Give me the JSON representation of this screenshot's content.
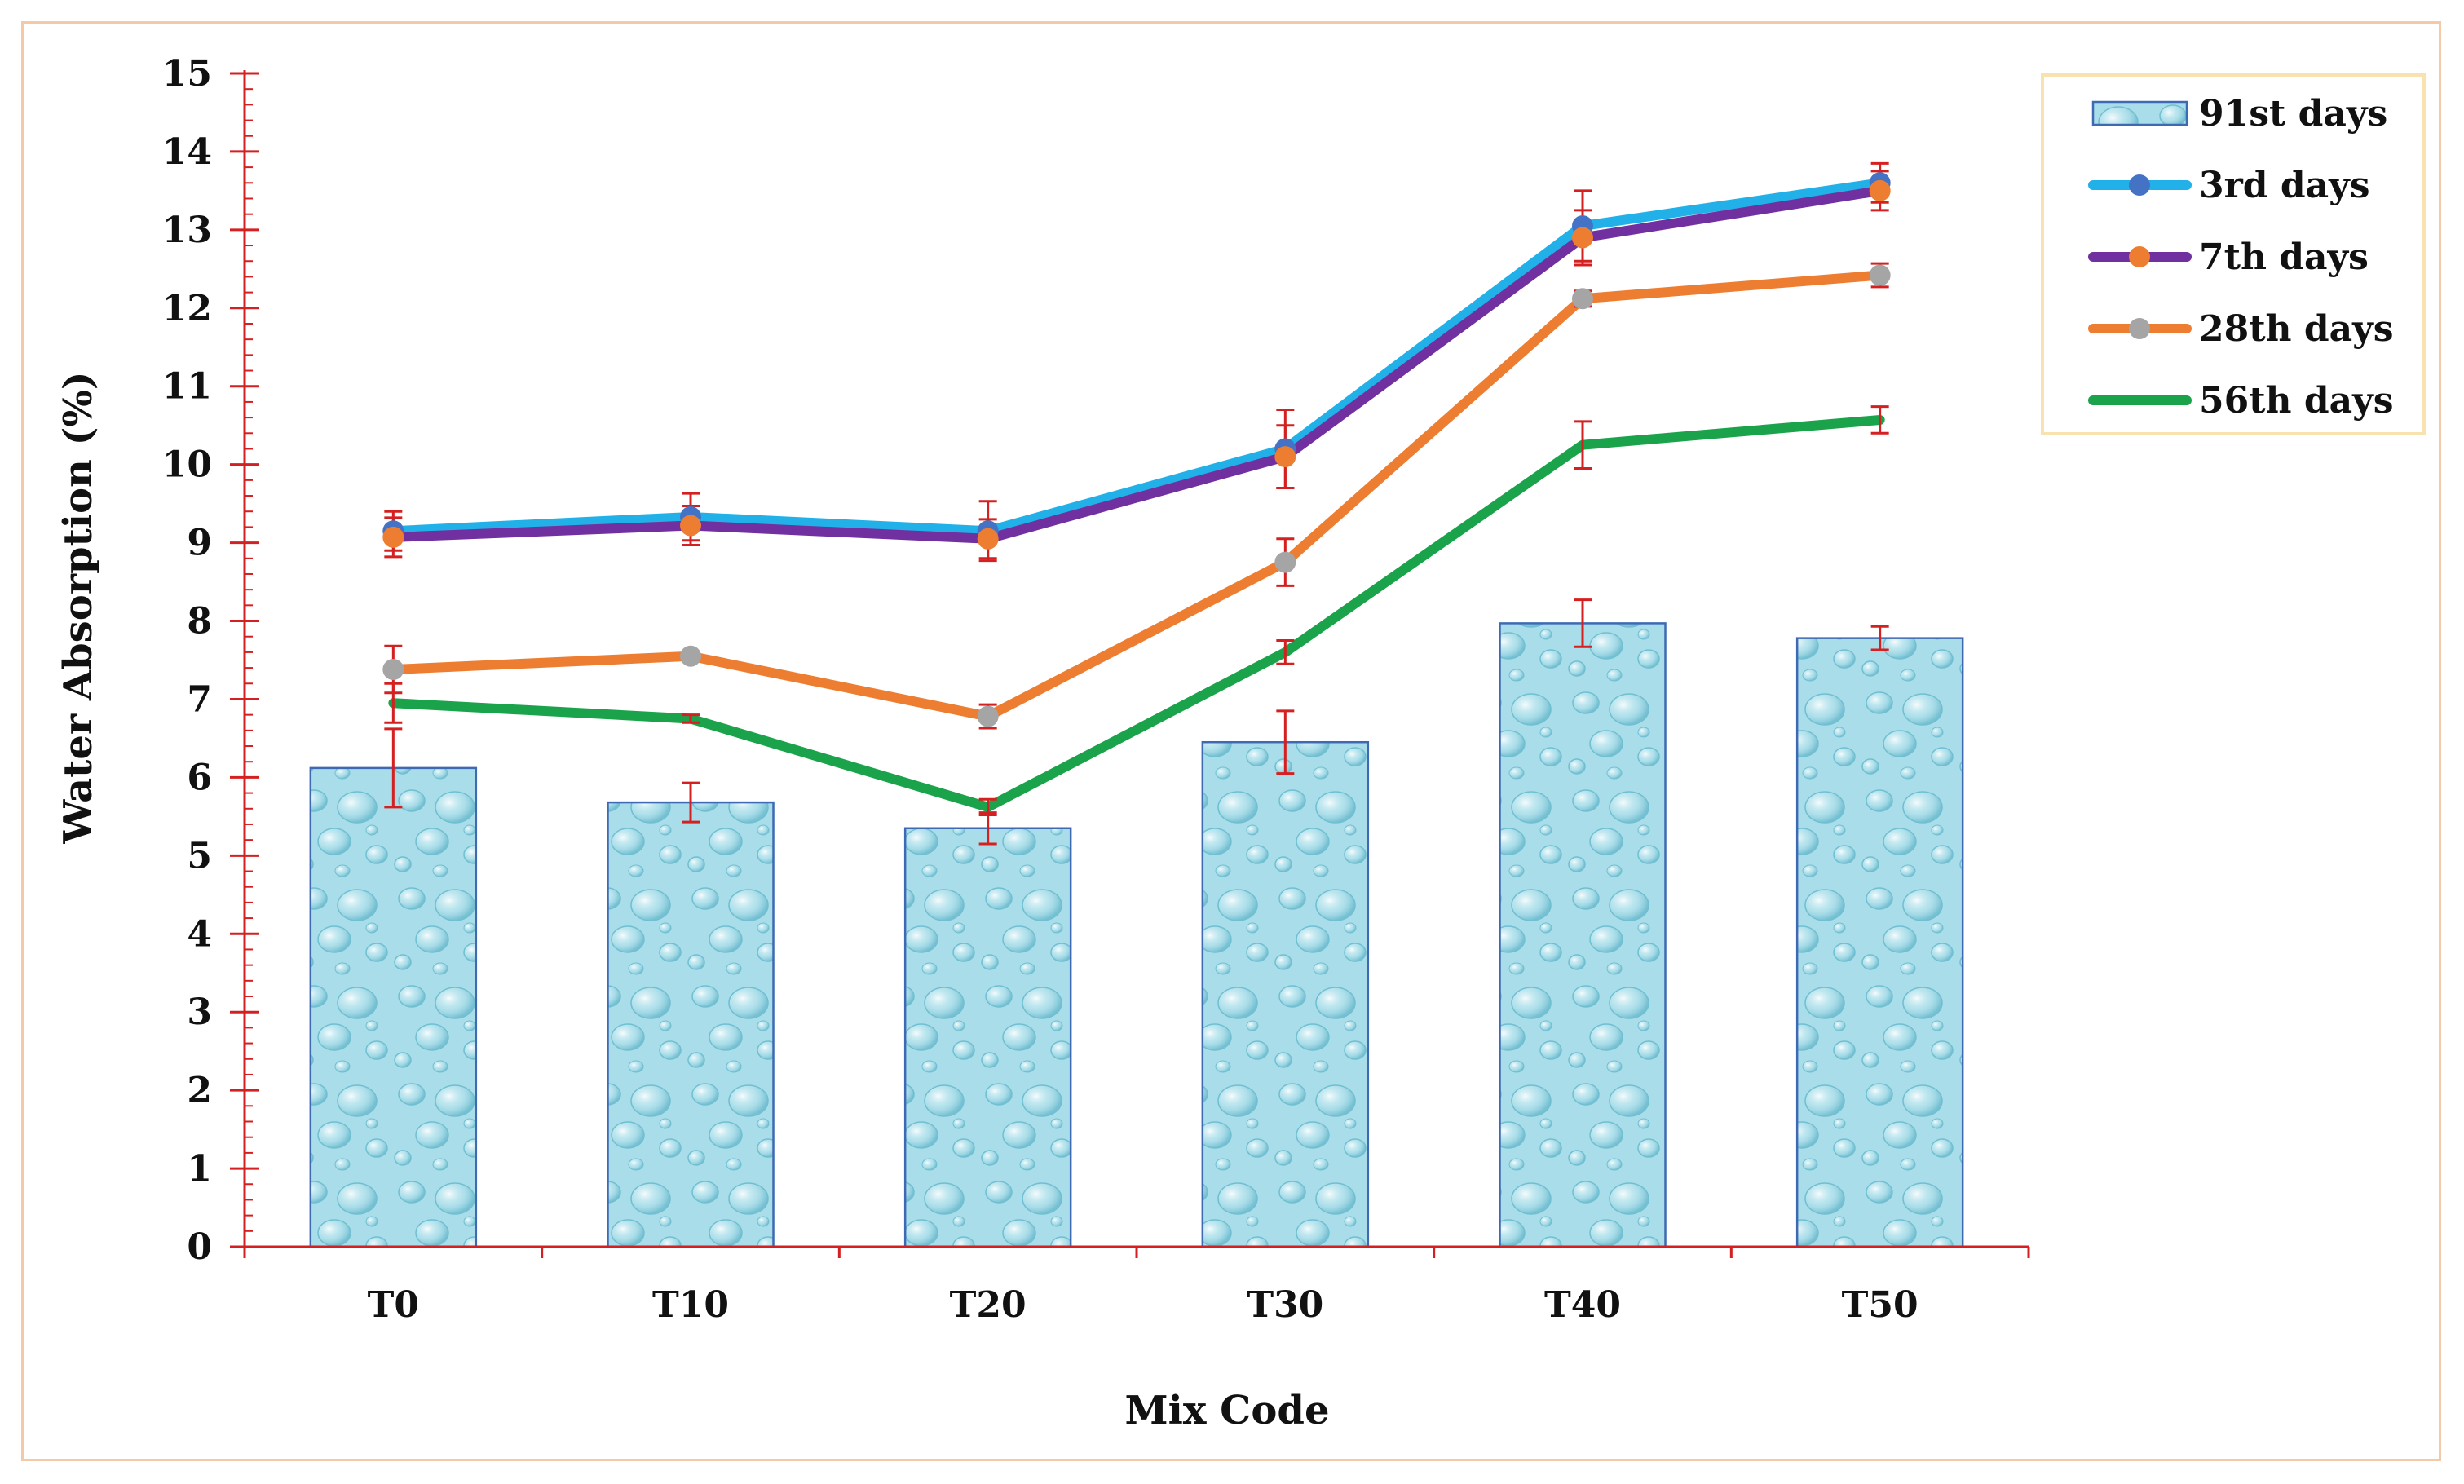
{
  "chart_data": {
    "type": "bar+line",
    "title": "",
    "xlabel": "Mix Code",
    "ylabel": "Water Absorption  (%)",
    "ylim": [
      0,
      15
    ],
    "yticks": [
      0,
      1,
      2,
      3,
      4,
      5,
      6,
      7,
      8,
      9,
      10,
      11,
      12,
      13,
      14,
      15
    ],
    "categories": [
      "T0",
      "T10",
      "T20",
      "T30",
      "T40",
      "T50"
    ],
    "legend_position": "top-right",
    "bar_series": {
      "name": "91st days",
      "values": [
        6.12,
        5.68,
        5.35,
        6.45,
        7.97,
        7.78
      ],
      "errors": [
        0.5,
        0.25,
        0.2,
        0.4,
        0.3,
        0.15
      ],
      "color": "#a8dde8",
      "edge_color": "#3d6ab3"
    },
    "line_series": [
      {
        "name": "3rd days",
        "values": [
          9.15,
          9.33,
          9.15,
          10.2,
          13.05,
          13.6
        ],
        "errors": [
          0.25,
          0.3,
          0.38,
          0.5,
          0.45,
          0.25
        ],
        "color": "#21b1e8",
        "marker_color": "#4472c4"
      },
      {
        "name": "7th days",
        "values": [
          9.07,
          9.22,
          9.05,
          10.1,
          12.9,
          13.5
        ],
        "errors": [
          0.25,
          0.25,
          0.25,
          0.4,
          0.35,
          0.25
        ],
        "color": "#7030a0",
        "marker_color": "#ed7d31"
      },
      {
        "name": "28th days",
        "values": [
          7.38,
          7.55,
          6.78,
          8.75,
          12.12,
          12.42
        ],
        "errors": [
          0.3,
          0.05,
          0.15,
          0.3,
          0.1,
          0.15
        ],
        "color": "#ed7d31",
        "marker_color": "#a5a5a5"
      },
      {
        "name": "56th days",
        "values": [
          6.95,
          6.75,
          5.62,
          7.6,
          10.25,
          10.57
        ],
        "errors": [
          0.25,
          0.05,
          0.1,
          0.15,
          0.3,
          0.17
        ],
        "color": "#1aa34a",
        "marker_color": null
      }
    ],
    "error_bar_color": "#d42020",
    "axis_color": "#d42020"
  }
}
